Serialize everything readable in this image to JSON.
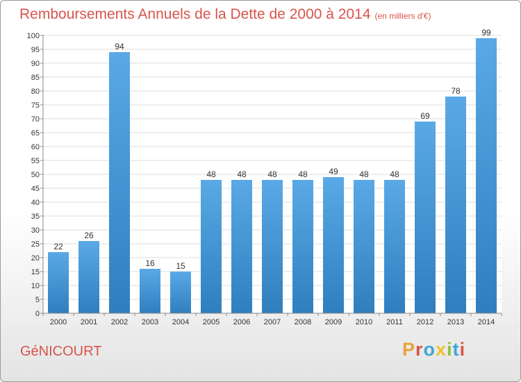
{
  "header": {
    "title": "Remboursements Annuels de la Dette de 2000 à 2014",
    "subtitle": "(en milliers d'€)"
  },
  "footer": {
    "commune": "GéNICOURT",
    "brand": "Proxiti",
    "brand_colors": [
      "#e8a33c",
      "#d8544c",
      "#3fa6d8",
      "#f0c22c",
      "#8ac440",
      "#3fa6d8",
      "#d8544c"
    ]
  },
  "colors": {
    "accent": "#d8544c",
    "bar_top": "#5aa9e6",
    "bar_bottom": "#2f7fbf"
  },
  "chart_data": {
    "type": "bar",
    "title": "Remboursements Annuels de la Dette de 2000 à 2014",
    "subtitle": "(en milliers d'€)",
    "categories": [
      "2000",
      "2001",
      "2002",
      "2003",
      "2004",
      "2005",
      "2006",
      "2007",
      "2008",
      "2009",
      "2010",
      "2011",
      "2012",
      "2013",
      "2014"
    ],
    "values": [
      22,
      26,
      94,
      16,
      15,
      48,
      48,
      48,
      48,
      49,
      48,
      48,
      69,
      78,
      99
    ],
    "ylim": [
      0,
      100
    ],
    "ytick_step": 5,
    "grid": true,
    "xlabel": "",
    "ylabel": ""
  }
}
